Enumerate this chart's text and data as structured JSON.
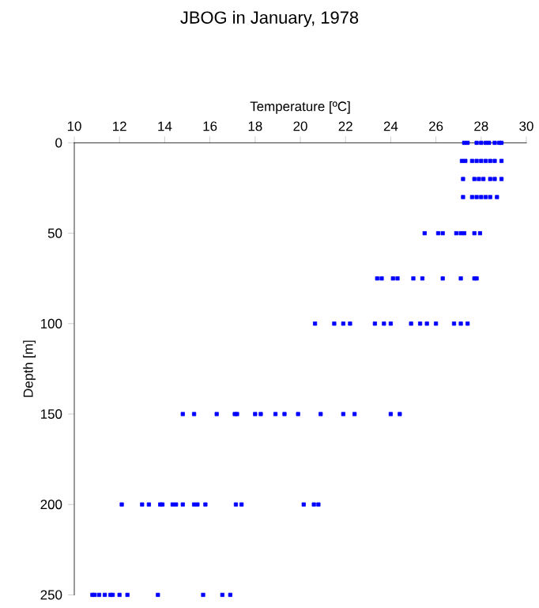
{
  "chart_data": {
    "type": "scatter",
    "title": "JBOG in January, 1978",
    "xlabel": "Temperature [ºC]",
    "ylabel": "Depth [m]",
    "x": [
      27.25,
      27.4,
      27.8,
      28.0,
      28.2,
      28.35,
      28.6,
      28.8,
      28.9,
      27.15,
      27.3,
      27.6,
      27.8,
      28.0,
      28.2,
      28.4,
      28.6,
      28.9,
      27.2,
      27.7,
      27.9,
      28.1,
      28.4,
      28.6,
      28.9,
      27.2,
      27.6,
      27.8,
      28.0,
      28.2,
      28.4,
      28.7,
      25.5,
      26.1,
      26.3,
      26.9,
      27.1,
      27.25,
      27.7,
      27.95,
      23.4,
      23.6,
      24.1,
      24.3,
      25.0,
      25.4,
      26.3,
      27.1,
      27.7,
      27.8,
      20.65,
      21.5,
      21.9,
      22.2,
      23.3,
      23.7,
      24.0,
      24.9,
      25.3,
      25.6,
      26.0,
      26.8,
      27.1,
      27.4,
      14.8,
      15.3,
      16.3,
      17.1,
      17.2,
      18.0,
      18.25,
      18.9,
      19.3,
      19.9,
      20.9,
      21.9,
      22.4,
      24.0,
      24.4,
      12.1,
      13.0,
      13.3,
      13.8,
      13.9,
      14.35,
      14.5,
      14.8,
      15.3,
      15.45,
      15.8,
      17.15,
      17.4,
      20.15,
      20.6,
      20.8,
      10.8,
      10.9,
      11.1,
      11.35,
      11.6,
      11.7,
      12.0,
      12.35,
      13.7,
      15.7,
      16.55,
      16.9
    ],
    "values": [
      0,
      0,
      0,
      0,
      0,
      0,
      0,
      0,
      0,
      10,
      10,
      10,
      10,
      10,
      10,
      10,
      10,
      10,
      20,
      20,
      20,
      20,
      20,
      20,
      20,
      30,
      30,
      30,
      30,
      30,
      30,
      30,
      50,
      50,
      50,
      50,
      50,
      50,
      50,
      50,
      75,
      75,
      75,
      75,
      75,
      75,
      75,
      75,
      75,
      75,
      100,
      100,
      100,
      100,
      100,
      100,
      100,
      100,
      100,
      100,
      100,
      100,
      100,
      100,
      150,
      150,
      150,
      150,
      150,
      150,
      150,
      150,
      150,
      150,
      150,
      150,
      150,
      150,
      150,
      200,
      200,
      200,
      200,
      200,
      200,
      200,
      200,
      200,
      200,
      200,
      200,
      200,
      200,
      200,
      200,
      250,
      250,
      250,
      250,
      250,
      250,
      250,
      250,
      250,
      250,
      250,
      250
    ],
    "color": "#0000ff",
    "marker": "square",
    "xlim": [
      10,
      30
    ],
    "xticks": [
      10,
      12,
      14,
      16,
      18,
      20,
      22,
      24,
      26,
      28,
      30
    ],
    "ylim": [
      250,
      0
    ],
    "yticks": [
      0,
      50,
      100,
      150,
      200,
      250
    ]
  }
}
